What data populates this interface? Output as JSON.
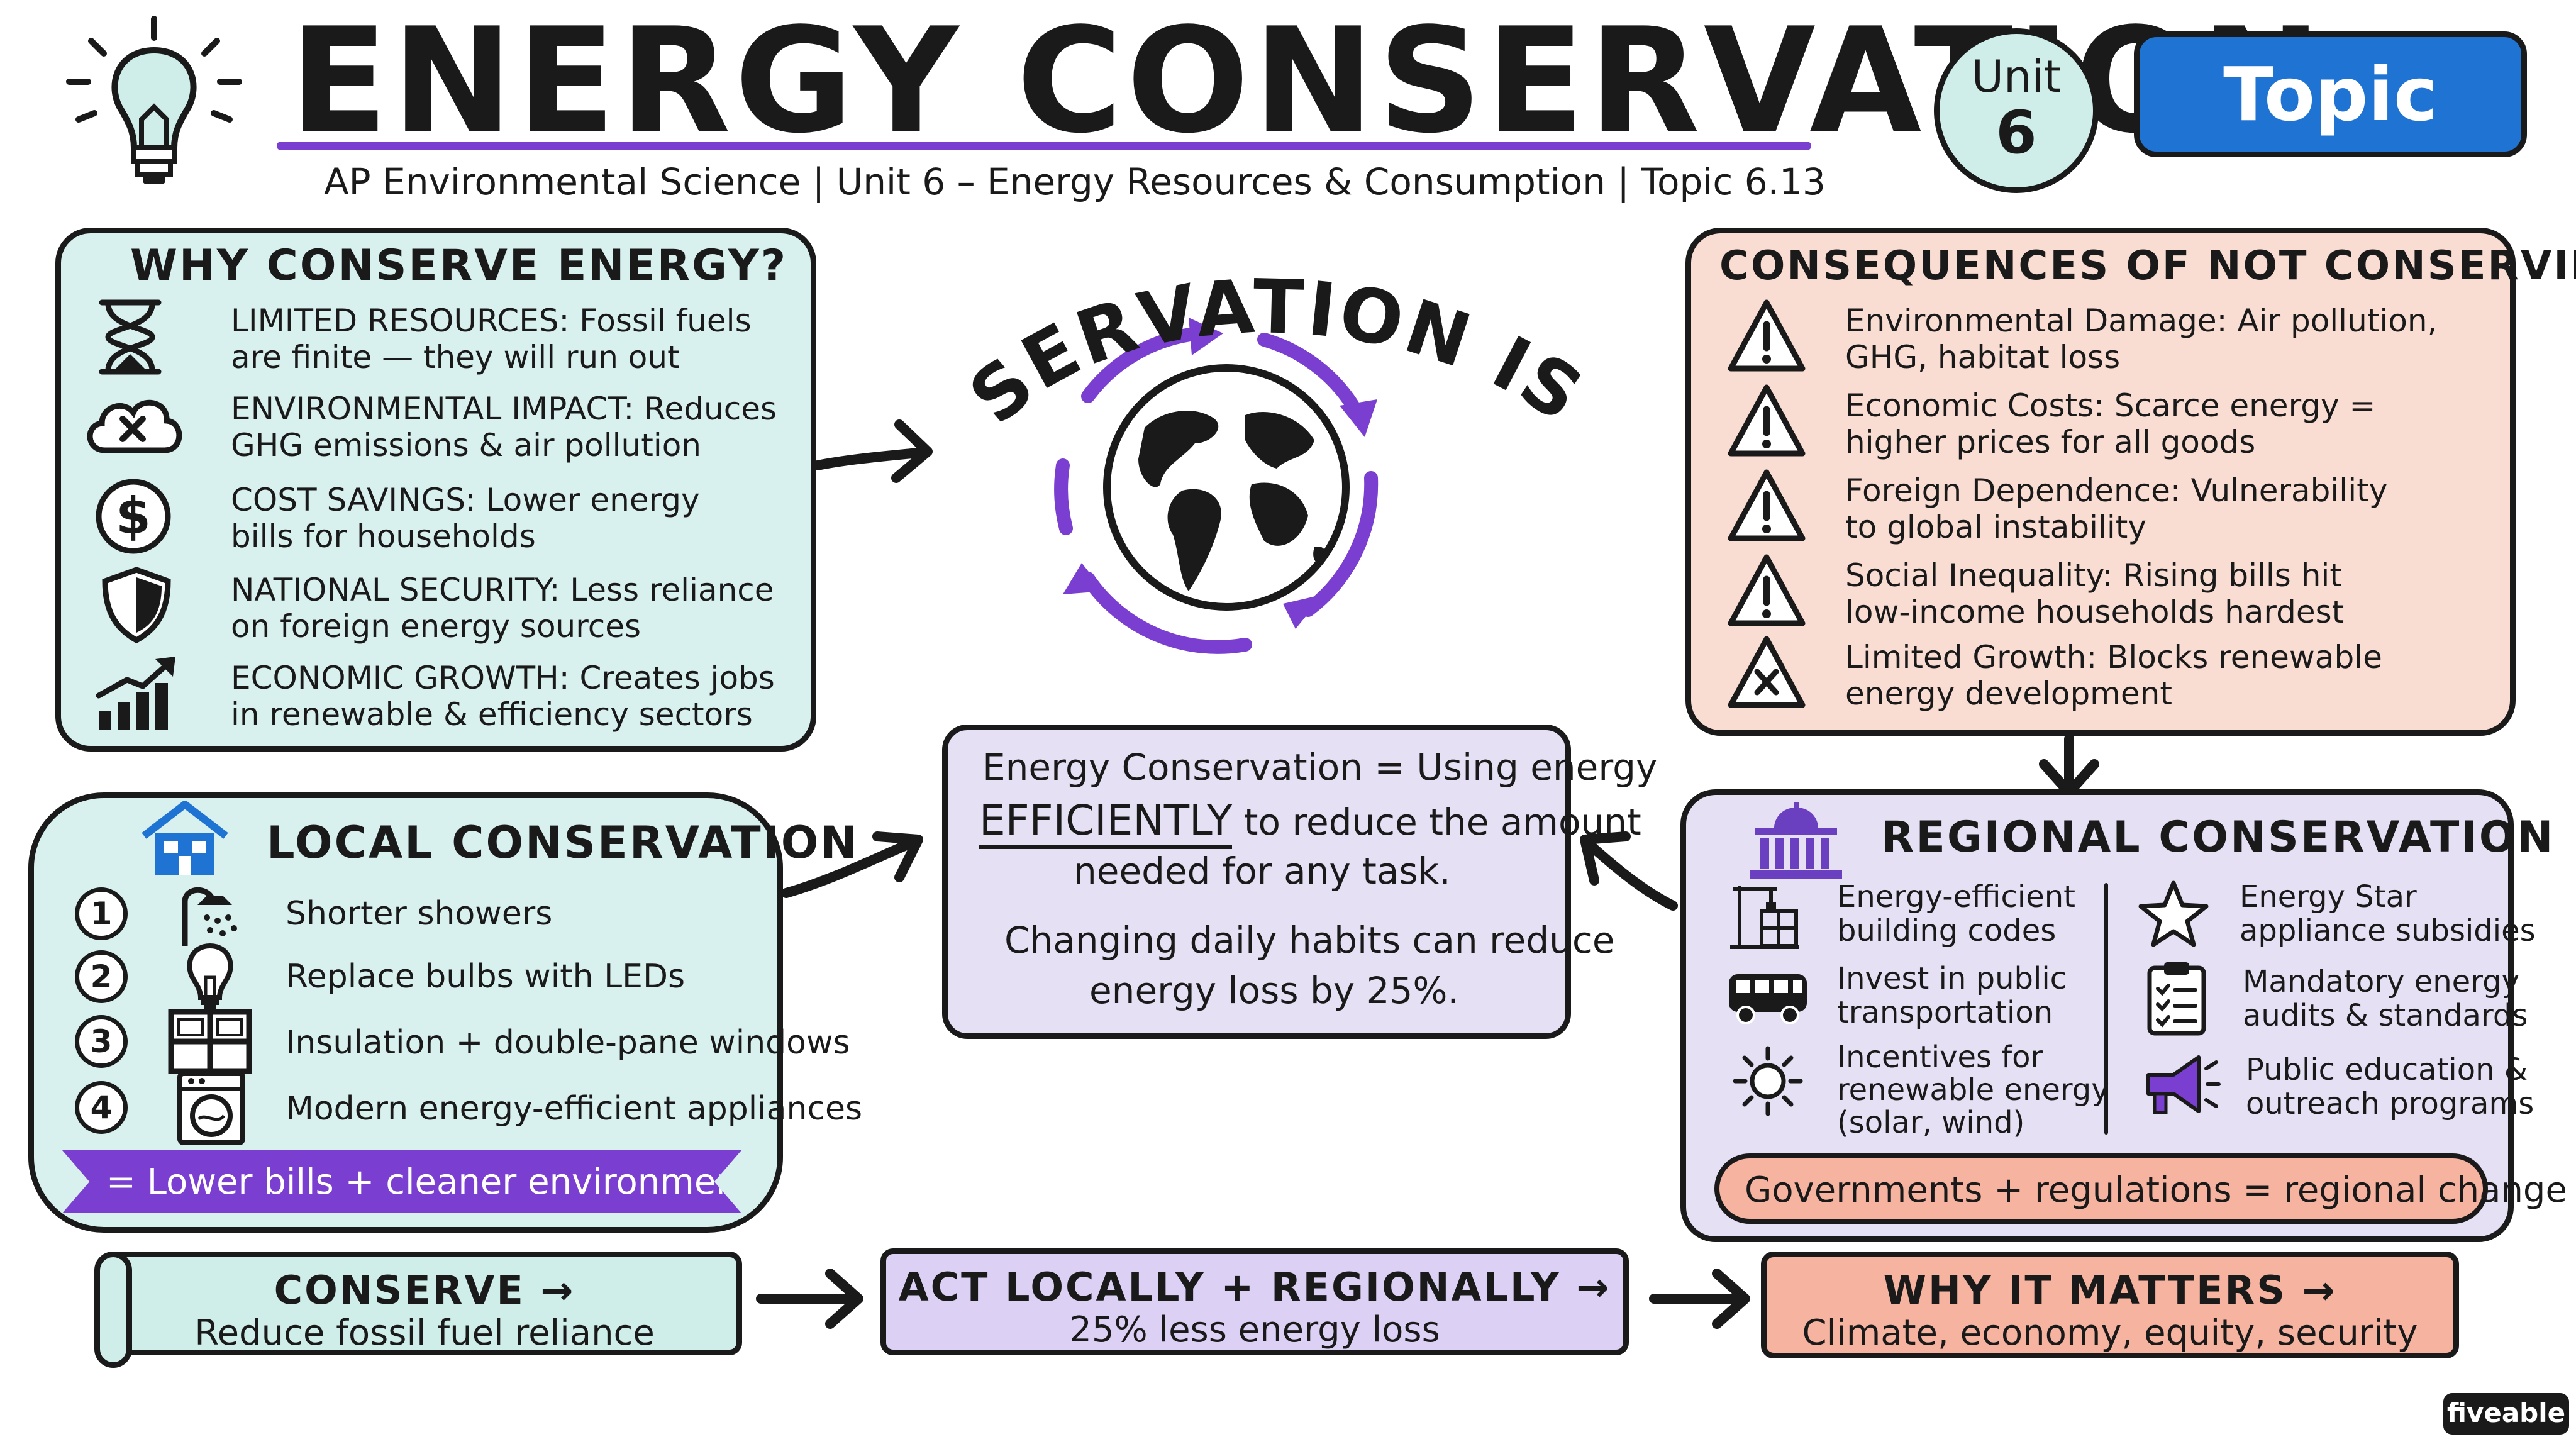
{
  "header": {
    "title": "ENERGY CONSERVATION",
    "subtitle": "AP Environmental Science  |  Unit 6 – Energy Resources & Consumption  |  Topic 6.13",
    "unit_line1": "Unit",
    "unit_line2": "6",
    "topic": "Topic 6.13"
  },
  "why": {
    "title": "WHY CONSERVE ENERGY?",
    "items": [
      {
        "l1": "LIMITED RESOURCES: Fossil fuels",
        "l2": "are finite — they will run out",
        "icon": "hourglass-icon"
      },
      {
        "l1": "ENVIRONMENTAL IMPACT: Reduces",
        "l2": "GHG emissions & air pollution",
        "icon": "cloud-x-icon"
      },
      {
        "l1": "COST SAVINGS: Lower energy",
        "l2": "bills for households",
        "icon": "dollar-icon"
      },
      {
        "l1": "NATIONAL SECURITY: Less reliance",
        "l2": "on foreign energy sources",
        "icon": "shield-icon"
      },
      {
        "l1": "ECONOMIC GROWTH: Creates jobs",
        "l2": "in renewable & efficiency sectors",
        "icon": "growth-chart-icon"
      }
    ]
  },
  "center": {
    "arc_text": "CONSERVATION IS KEY",
    "def_l1": "Energy Conservation = Using energy",
    "def_emph": "EFFICIENTLY",
    "def_l2_rest": " to reduce the amount",
    "def_l3": "needed for any task.",
    "habit_l1": "Changing daily habits can reduce",
    "habit_l2": "energy loss by 25%."
  },
  "consequences": {
    "title": "CONSEQUENCES OF NOT CONSERVING",
    "items": [
      {
        "l1": "Environmental Damage: Air pollution,",
        "l2": "GHG, habitat loss",
        "icon": "warning-icon"
      },
      {
        "l1": "Economic Costs: Scarce energy =",
        "l2": "higher prices for all goods",
        "icon": "warning-icon"
      },
      {
        "l1": "Foreign Dependence: Vulnerability",
        "l2": "to global instability",
        "icon": "warning-icon"
      },
      {
        "l1": "Social Inequality: Rising bills hit",
        "l2": "low-income households hardest",
        "icon": "warning-icon"
      },
      {
        "l1": "Limited Growth: Blocks renewable",
        "l2": "energy development",
        "icon": "warning-x-icon"
      }
    ]
  },
  "local": {
    "title": "LOCAL CONSERVATION",
    "items": [
      {
        "num": "1",
        "text": "Shorter showers",
        "icon": "shower-icon"
      },
      {
        "num": "2",
        "text": "Replace bulbs with LEDs",
        "icon": "bulb-icon"
      },
      {
        "num": "3",
        "text": "Insulation + double-pane windows",
        "icon": "window-icon"
      },
      {
        "num": "4",
        "text": "Modern energy-efficient appliances",
        "icon": "washer-icon"
      }
    ],
    "banner": "= Lower bills + cleaner environment"
  },
  "regional": {
    "title": "REGIONAL CONSERVATION",
    "left": [
      {
        "l1": "Energy-efficient",
        "l2": "building codes",
        "l3": "",
        "icon": "building-crane-icon"
      },
      {
        "l1": "Invest in public",
        "l2": "transportation",
        "l3": "",
        "icon": "bus-icon"
      },
      {
        "l1": "Incentives for",
        "l2": "renewable energy",
        "l3": "(solar, wind)",
        "icon": "sun-icon"
      }
    ],
    "right": [
      {
        "l1": "Energy Star",
        "l2": "appliance subsidies",
        "icon": "star-icon"
      },
      {
        "l1": "Mandatory energy",
        "l2": "audits & standards",
        "icon": "clipboard-icon"
      },
      {
        "l1": "Public education &",
        "l2": "outreach programs",
        "icon": "megaphone-icon"
      }
    ],
    "bubble": "Governments + regulations = regional change"
  },
  "flow": [
    {
      "title": "CONSERVE →",
      "sub": "Reduce fossil fuel reliance"
    },
    {
      "title": "ACT LOCALLY + REGIONALLY →",
      "sub": "25% less energy loss"
    },
    {
      "title": "WHY IT MATTERS →",
      "sub": "Climate, economy, equity, security"
    }
  ],
  "brand": "fiveable"
}
